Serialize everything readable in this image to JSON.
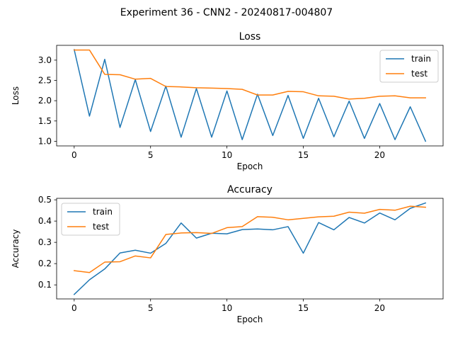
{
  "figure": {
    "suptitle": "Experiment 36 - CNN2 - 20240817-004807"
  },
  "chart_data": [
    {
      "type": "line",
      "title": "Loss",
      "xlabel": "Epoch",
      "ylabel": "Loss",
      "xlim": [
        -1.15,
        24.15
      ],
      "ylim": [
        0.885,
        3.365
      ],
      "xticks": [
        0,
        5,
        10,
        15,
        20
      ],
      "yticks": [
        1.0,
        1.5,
        2.0,
        2.5,
        3.0
      ],
      "ytick_labels": [
        "1.0",
        "1.5",
        "2.0",
        "2.5",
        "3.0"
      ],
      "grid": false,
      "legend": "top-right",
      "x": [
        0,
        1,
        2,
        3,
        4,
        5,
        6,
        7,
        8,
        9,
        10,
        11,
        12,
        13,
        14,
        15,
        16,
        17,
        18,
        19,
        20,
        21,
        22,
        23
      ],
      "series": [
        {
          "name": "train",
          "color": "#1f77b4",
          "values": [
            3.26,
            1.62,
            3.02,
            1.34,
            2.52,
            1.24,
            2.36,
            1.1,
            2.3,
            1.1,
            2.24,
            1.04,
            2.16,
            1.14,
            2.13,
            1.07,
            2.06,
            1.11,
            1.99,
            1.07,
            1.93,
            1.04,
            1.85,
            1.0
          ]
        },
        {
          "name": "test",
          "color": "#ff7f0e",
          "values": [
            3.25,
            3.25,
            2.65,
            2.64,
            2.53,
            2.55,
            2.35,
            2.34,
            2.32,
            2.31,
            2.3,
            2.28,
            2.14,
            2.14,
            2.23,
            2.22,
            2.12,
            2.11,
            2.04,
            2.06,
            2.11,
            2.12,
            2.07,
            2.07
          ]
        }
      ]
    },
    {
      "type": "line",
      "title": "Accuracy",
      "xlabel": "Epoch",
      "ylabel": "Accuracy",
      "xlim": [
        -1.15,
        24.15
      ],
      "ylim": [
        0.034,
        0.507
      ],
      "xticks": [
        0,
        5,
        10,
        15,
        20
      ],
      "yticks": [
        0.1,
        0.2,
        0.3,
        0.4,
        0.5
      ],
      "ytick_labels": [
        "0.1",
        "0.2",
        "0.3",
        "0.4",
        "0.5"
      ],
      "grid": false,
      "legend": "top-left",
      "x": [
        0,
        1,
        2,
        3,
        4,
        5,
        6,
        7,
        8,
        9,
        10,
        11,
        12,
        13,
        14,
        15,
        16,
        17,
        18,
        19,
        20,
        21,
        22,
        23
      ],
      "series": [
        {
          "name": "train",
          "color": "#1f77b4",
          "values": [
            0.055,
            0.124,
            0.175,
            0.25,
            0.263,
            0.249,
            0.295,
            0.391,
            0.32,
            0.343,
            0.34,
            0.36,
            0.363,
            0.359,
            0.374,
            0.249,
            0.393,
            0.359,
            0.417,
            0.391,
            0.438,
            0.406,
            0.46,
            0.485
          ]
        },
        {
          "name": "test",
          "color": "#ff7f0e",
          "values": [
            0.167,
            0.158,
            0.207,
            0.209,
            0.236,
            0.227,
            0.337,
            0.344,
            0.346,
            0.342,
            0.369,
            0.374,
            0.421,
            0.418,
            0.406,
            0.413,
            0.42,
            0.423,
            0.442,
            0.437,
            0.455,
            0.451,
            0.47,
            0.465
          ]
        }
      ]
    }
  ]
}
